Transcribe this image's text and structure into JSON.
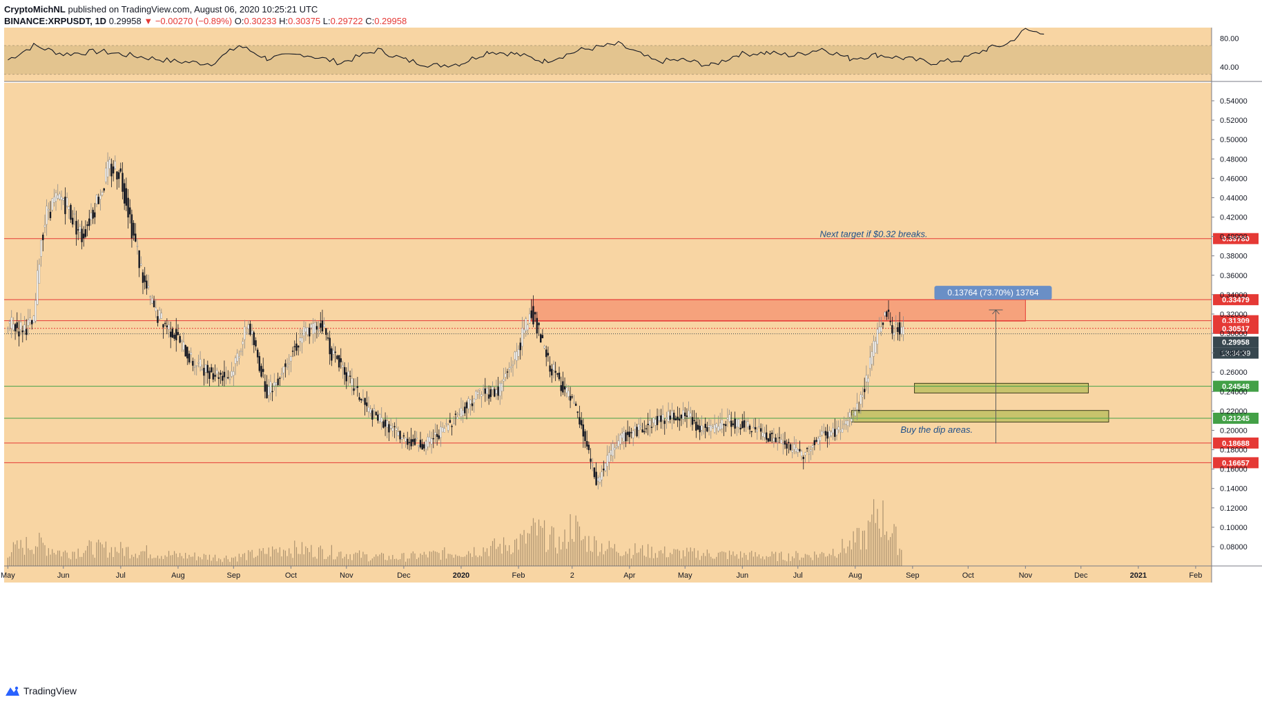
{
  "header": {
    "author": "CryptoMichNL",
    "published": "published on TradingView.com, August 06, 2020 10:25:21 UTC",
    "symbol": "BINANCE:XRPUSDT, 1D",
    "price": "0.29958",
    "change_arrow": "▼",
    "change": "−0.00270 (−0.89%)",
    "o_label": "O:",
    "o_value": "0.30233",
    "h_label": "H:",
    "h_value": "0.30375",
    "l_label": "L:",
    "l_value": "0.29722",
    "c_label": "C:",
    "c_value": "0.29958"
  },
  "footer": {
    "brand": "TradingView"
  },
  "colors": {
    "background": "#f8d5a3",
    "rsi_band": "#e3c48f",
    "resistance": "#e53935",
    "support": "#43a047",
    "zone_red": "#f6a27c",
    "zone_green": "#c8c36c",
    "price_badge": "#37474f",
    "measure": "#6a8fc6"
  },
  "chart_data": [
    {
      "type": "line",
      "name": "RSI",
      "ylim": [
        20,
        95
      ],
      "y_ticks": [
        80,
        40
      ],
      "y_tick_labels": [
        "80.00",
        "40.00"
      ],
      "band": [
        30,
        70
      ],
      "x_days": [
        0,
        14,
        30,
        50,
        70,
        90,
        110,
        125,
        140,
        160,
        180,
        200,
        215,
        230,
        245,
        260,
        275,
        290,
        310,
        330,
        350,
        365,
        380,
        395,
        410,
        425,
        440,
        455,
        470,
        485,
        500,
        515,
        530,
        540,
        550,
        560
      ],
      "values": [
        50,
        70,
        58,
        62,
        55,
        48,
        45,
        70,
        52,
        58,
        46,
        64,
        50,
        42,
        45,
        62,
        58,
        48,
        64,
        72,
        48,
        50,
        42,
        58,
        60,
        56,
        66,
        52,
        57,
        52,
        46,
        50,
        66,
        72,
        92,
        86
      ]
    },
    {
      "type": "candlestick",
      "name": "XRPUSDT 1D",
      "y_ticks": [
        0.08,
        0.1,
        0.12,
        0.14,
        0.16,
        0.18,
        0.2,
        0.22,
        0.24,
        0.26,
        0.28,
        0.3,
        0.32,
        0.34,
        0.36,
        0.38,
        0.4,
        0.42,
        0.44,
        0.46,
        0.48,
        0.5,
        0.52,
        0.54
      ],
      "y_tick_labels": [
        "0.08000",
        "0.10000",
        "0.12000",
        "0.14000",
        "0.16000",
        "0.18000",
        "0.20000",
        "0.22000",
        "0.24000",
        "0.26000",
        "0.28000",
        "0.30000",
        "0.32000",
        "0.34000",
        "0.36000",
        "0.38000",
        "0.40000",
        "0.42000",
        "0.44000",
        "0.46000",
        "0.48000",
        "0.50000",
        "0.52000",
        "0.54000"
      ],
      "x_tick_labels": [
        "May",
        "Jun",
        "Jul",
        "Aug",
        "Sep",
        "Oct",
        "Nov",
        "Dec",
        "2020",
        "Feb",
        "2",
        "Apr",
        "May",
        "Jun",
        "Jul",
        "Aug",
        "Sep",
        "Oct",
        "Nov",
        "Dec",
        "2021",
        "Feb"
      ],
      "x_tick_days": [
        0,
        30,
        61,
        92,
        122,
        153,
        183,
        214,
        245,
        276,
        305,
        336,
        366,
        397,
        427,
        458,
        489,
        519,
        550,
        580,
        611,
        642
      ],
      "close_anchors_days": [
        0,
        6,
        14,
        18,
        22,
        30,
        40,
        55,
        60,
        64,
        68,
        74,
        80,
        90,
        100,
        110,
        120,
        130,
        140,
        145,
        150,
        160,
        170,
        175,
        180,
        185,
        195,
        205,
        215,
        225,
        235,
        245,
        255,
        265,
        275,
        283,
        287,
        292,
        300,
        306,
        312,
        318,
        322,
        325,
        330,
        340,
        350,
        360,
        368,
        372,
        380,
        390,
        405,
        420,
        430,
        440,
        450,
        460,
        465,
        470,
        475,
        478,
        480,
        482,
        484
      ],
      "close_anchors": [
        0.31,
        0.305,
        0.31,
        0.4,
        0.43,
        0.44,
        0.4,
        0.47,
        0.47,
        0.44,
        0.4,
        0.35,
        0.32,
        0.3,
        0.27,
        0.26,
        0.255,
        0.31,
        0.24,
        0.25,
        0.27,
        0.3,
        0.31,
        0.28,
        0.27,
        0.25,
        0.22,
        0.205,
        0.19,
        0.185,
        0.2,
        0.22,
        0.24,
        0.24,
        0.28,
        0.325,
        0.3,
        0.27,
        0.245,
        0.225,
        0.19,
        0.145,
        0.16,
        0.175,
        0.19,
        0.2,
        0.21,
        0.215,
        0.215,
        0.205,
        0.2,
        0.21,
        0.2,
        0.185,
        0.175,
        0.195,
        0.2,
        0.225,
        0.26,
        0.3,
        0.325,
        0.3,
        0.31,
        0.303,
        0.2996
      ],
      "levels": [
        {
          "price": 0.3978,
          "label": "0.39780",
          "color": "#e53935"
        },
        {
          "price": 0.33479,
          "label": "0.33479",
          "color": "#e53935"
        },
        {
          "price": 0.31309,
          "label": "0.31309",
          "color": "#e53935"
        },
        {
          "price": 0.30517,
          "label": "0.30517",
          "color": "#e53935"
        },
        {
          "price": 0.24548,
          "label": "0.24548",
          "color": "#43a047"
        },
        {
          "price": 0.21245,
          "label": "0.21245",
          "color": "#43a047"
        },
        {
          "price": 0.18688,
          "label": "0.18688",
          "color": "#e53935"
        },
        {
          "price": 0.16657,
          "label": "0.16657",
          "color": "#e53935"
        }
      ],
      "last_price": {
        "price": 0.29958,
        "label": "0.29958",
        "countdown": "13:34:39"
      },
      "zones": [
        {
          "name": "resistance-zone",
          "x_days": [
            283,
            550
          ],
          "y": [
            0.3127,
            0.3348
          ]
        },
        {
          "name": "buy-zone-upper",
          "x_days": [
            490,
            584
          ],
          "y": [
            0.2385,
            0.2485
          ]
        },
        {
          "name": "buy-zone-lower",
          "x_days": [
            456,
            595
          ],
          "y": [
            0.2085,
            0.2205
          ]
        }
      ],
      "measure": {
        "label": "0.13764 (73.70%) 13764",
        "x_day": 534,
        "y_from": 0.1866,
        "y_to": 0.3242
      },
      "annotations": [
        {
          "text": "Next target if $0.32 breaks.",
          "x_day": 468,
          "y": 0.3995
        },
        {
          "text": "Buy the dip areas.",
          "x_day": 502,
          "y": 0.1976
        }
      ]
    },
    {
      "type": "bar",
      "name": "Volume",
      "x_days": [
        0,
        15,
        30,
        45,
        60,
        75,
        90,
        105,
        120,
        135,
        150,
        165,
        180,
        195,
        210,
        225,
        240,
        255,
        270,
        280,
        285,
        300,
        305,
        310,
        325,
        340,
        360,
        380,
        400,
        420,
        440,
        455,
        465,
        470,
        475,
        480,
        484
      ],
      "values": [
        25,
        40,
        22,
        30,
        28,
        24,
        18,
        16,
        14,
        20,
        30,
        26,
        22,
        16,
        14,
        18,
        22,
        28,
        35,
        45,
        60,
        35,
        75,
        45,
        30,
        26,
        22,
        20,
        18,
        16,
        20,
        35,
        55,
        95,
        70,
        45,
        20
      ]
    }
  ]
}
